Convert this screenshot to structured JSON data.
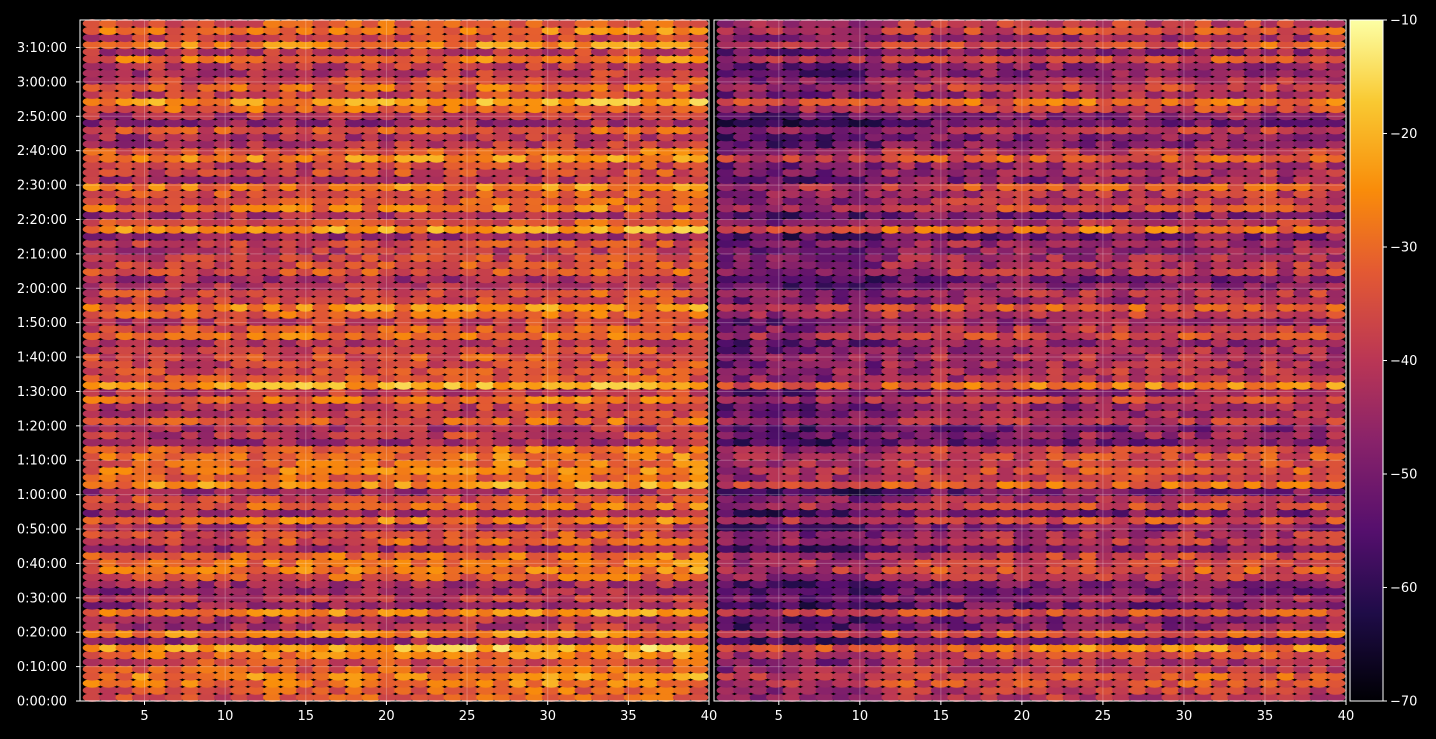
{
  "chart_data": {
    "type": "heatmap",
    "title": "",
    "xlabel": "",
    "ylabel": "",
    "grid": true,
    "panels": [
      {
        "name": "",
        "x_ticks": [
          "5",
          "10",
          "15",
          "20",
          "25",
          "30",
          "35",
          "40"
        ],
        "xlim": [
          1,
          40
        ]
      },
      {
        "name": "",
        "x_ticks": [
          "5",
          "10",
          "15",
          "20",
          "25",
          "30",
          "35",
          "40"
        ],
        "xlim": [
          1,
          40
        ]
      }
    ],
    "y_ticks": [
      "0:00:00",
      "0:10:00",
      "0:20:00",
      "0:30:00",
      "0:40:00",
      "0:50:00",
      "1:00:00",
      "1:10:00",
      "1:20:00",
      "1:30:00",
      "1:40:00",
      "1:50:00",
      "2:00:00",
      "2:10:00",
      "2:20:00",
      "2:30:00",
      "2:40:00",
      "2:50:00",
      "3:00:00",
      "3:10:00"
    ],
    "ylim_seconds": [
      0,
      11880
    ],
    "colorbar": {
      "colormap": "inferno",
      "range": [
        -70,
        -10
      ],
      "ticks": [
        "−10",
        "−20",
        "−30",
        "−40",
        "−50",
        "−60",
        "−70"
      ]
    },
    "colors": {
      "background": "#000000",
      "axis": "#ffffff",
      "grid": "#ffffff"
    }
  }
}
